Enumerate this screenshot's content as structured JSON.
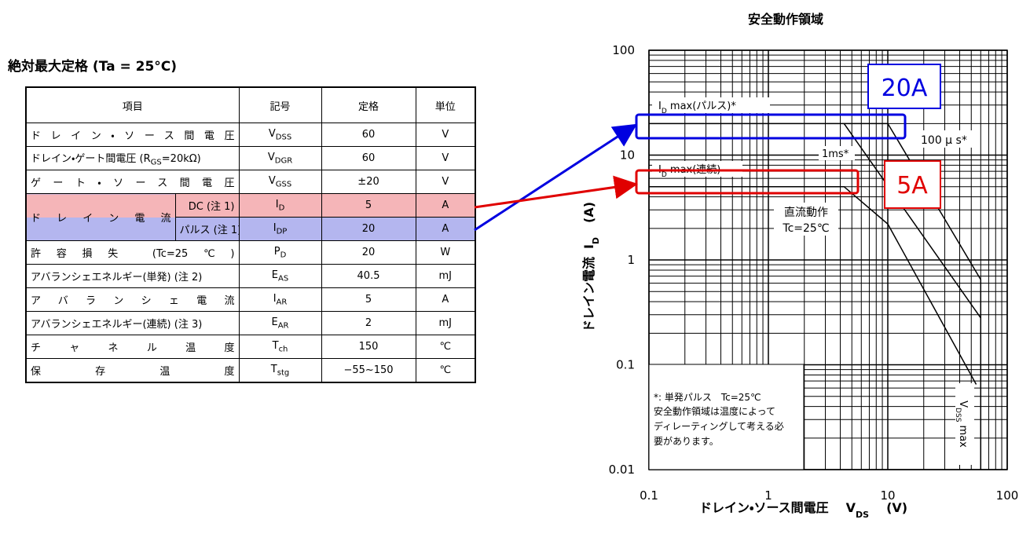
{
  "header": {
    "title": "絶対最大定格 (Ta = 25°C)"
  },
  "table": {
    "headers": [
      "項目",
      "記号",
      "定格",
      "単位"
    ],
    "rows": [
      {
        "item": "ドレイン・ソース間電圧",
        "symbol": {
          "main": "V",
          "sub": "DSS"
        },
        "rating": "60",
        "unit": "V"
      },
      {
        "item": {
          "text": "ドレイン・ゲート間電圧 (R",
          "sub": "GS",
          "tail": "=20kΩ)"
        },
        "symbol": {
          "main": "V",
          "sub": "DGR"
        },
        "rating": "60",
        "unit": "V"
      },
      {
        "item": "ゲート・ソース間電圧",
        "symbol": {
          "main": "V",
          "sub": "GSS"
        },
        "rating": "±20",
        "unit": "V"
      },
      {
        "item": "ドレイン電流",
        "subitem": "DC (注 1)",
        "symbol": {
          "main": "I",
          "sub": "D"
        },
        "rating": "5",
        "unit": "A"
      },
      {
        "subitem": "パルス (注 1)",
        "symbol": {
          "main": "I",
          "sub": "DP"
        },
        "rating": "20",
        "unit": "A"
      },
      {
        "item": "許容損失 (Tc=25℃)",
        "symbol": {
          "main": "P",
          "sub": "D"
        },
        "rating": "20",
        "unit": "W"
      },
      {
        "item": "アバランシェエネルギー(単発) (注 2)",
        "symbol": {
          "main": "E",
          "sub": "AS"
        },
        "rating": "40.5",
        "unit": "mJ"
      },
      {
        "item": "アバランシェ電流",
        "symbol": {
          "main": "I",
          "sub": "AR"
        },
        "rating": "5",
        "unit": "A"
      },
      {
        "item": "アバランシェエネルギー(連続) (注 3)",
        "symbol": {
          "main": "E",
          "sub": "AR"
        },
        "rating": "2",
        "unit": "mJ"
      },
      {
        "item": "チャネル温度",
        "symbol": {
          "main": "T",
          "sub": "ch"
        },
        "rating": "150",
        "unit": "℃"
      },
      {
        "item": "保存温度",
        "symbol": {
          "main": "T",
          "sub": "stg"
        },
        "rating": "−55~150",
        "unit": "℃"
      }
    ]
  },
  "chart_data": {
    "type": "line",
    "title": "安全動作領域",
    "xlabel": {
      "text": "ドレイン・ソース間電圧",
      "symbol": "V",
      "sub": "DS",
      "unit": "(V)"
    },
    "ylabel": {
      "text": "ドレイン電流",
      "symbol": "I",
      "sub": "D",
      "unit": "(A)"
    },
    "log_x": true,
    "log_y": true,
    "grid": true,
    "xlim": [
      0.1,
      100
    ],
    "ylim": [
      0.01,
      100
    ],
    "xticks": [
      0.1,
      1,
      10,
      100
    ],
    "yticks": [
      0.01,
      0.1,
      1,
      10,
      100
    ],
    "series": [
      {
        "color": "#000000",
        "x": [
          0.1,
          10,
          60
        ],
        "values": [
          20,
          20,
          0.65
        ]
      },
      {
        "color": "#000000",
        "x": [
          4.3,
          60
        ],
        "values": [
          20,
          0.28
        ]
      },
      {
        "color": "#000000",
        "x": [
          0.1,
          4.3,
          10,
          55
        ],
        "values": [
          5,
          5,
          2.2,
          0.065
        ]
      },
      {
        "color": "#000000",
        "x": [
          60,
          60
        ],
        "values": [
          0.01,
          0.65
        ]
      }
    ],
    "annotations": {
      "pulse": {
        "symbol": "I",
        "sub": "D",
        "text": " max(パルス)*"
      },
      "continuous": {
        "symbol": "I",
        "sub": "D",
        "text": " max(連続)"
      },
      "t100us": "100 μ s*",
      "t1ms": "1ms*",
      "dc": [
        "直流動作",
        "Tc=25℃"
      ],
      "vdss": {
        "symbol": "V",
        "sub": "DSS",
        "text": " max"
      },
      "note": [
        "*: 単発パルス　Tc=25℃",
        "安全動作領域は温度によって",
        "ディレーティングして考える必",
        "要があります。"
      ]
    }
  },
  "callouts": {
    "pulse": "20A",
    "dc": "5A"
  }
}
